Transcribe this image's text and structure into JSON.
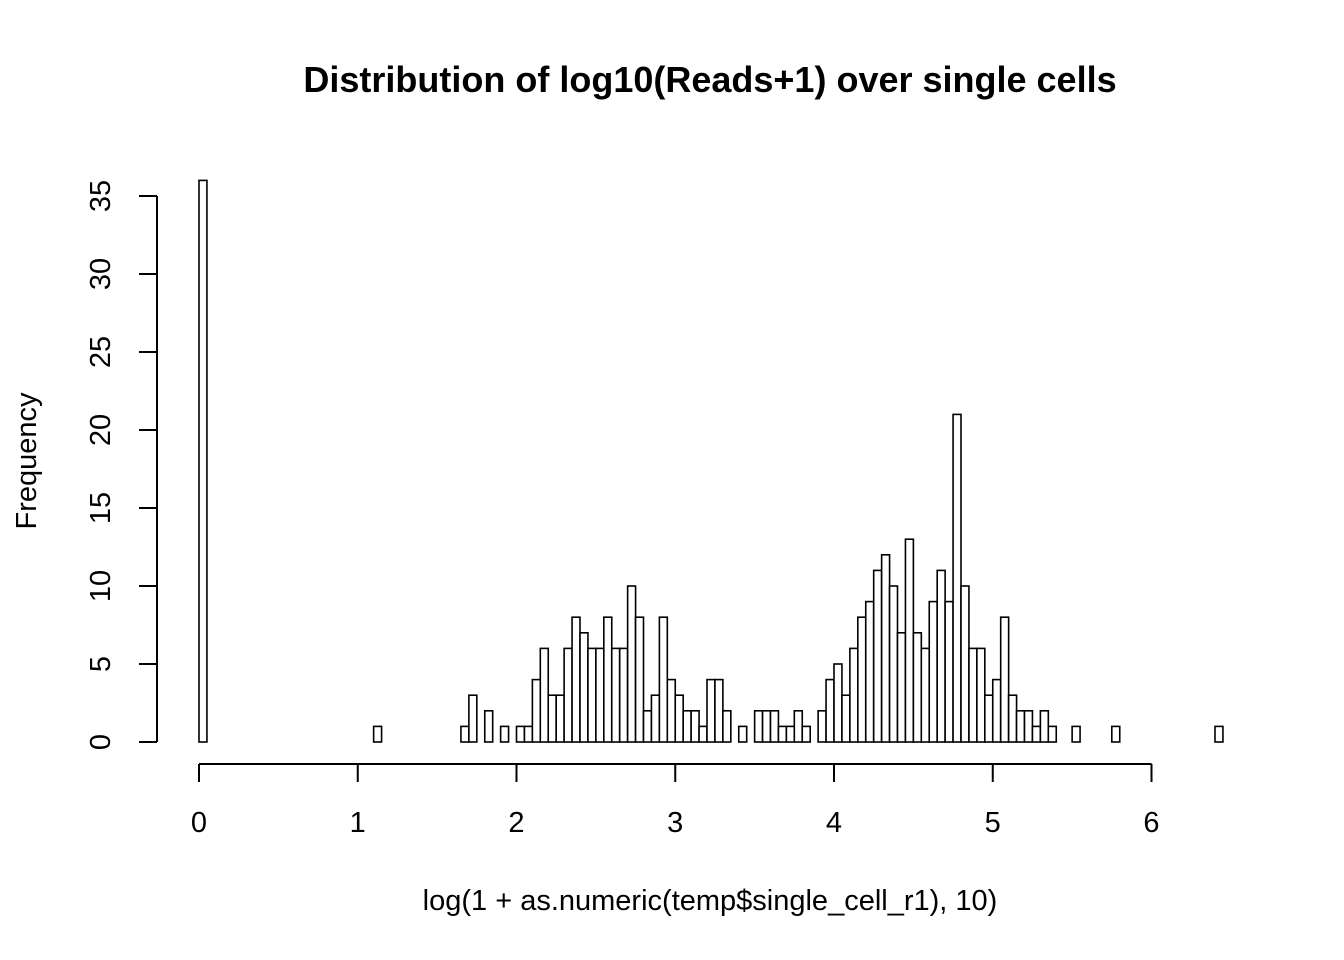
{
  "chart_data": {
    "type": "bar",
    "title": "Distribution of log10(Reads+1) over single cells",
    "xlabel": "log(1 + as.numeric(temp$single_cell_r1), 10)",
    "ylabel": "Frequency",
    "xlim": [
      0,
      6
    ],
    "ylim": [
      0,
      35
    ],
    "x_ticks": [
      {
        "value": 0,
        "label": "0"
      },
      {
        "value": 1,
        "label": "1"
      },
      {
        "value": 2,
        "label": "2"
      },
      {
        "value": 3,
        "label": "3"
      },
      {
        "value": 4,
        "label": "4"
      },
      {
        "value": 5,
        "label": "5"
      },
      {
        "value": 6,
        "label": "6"
      }
    ],
    "y_ticks": [
      {
        "value": 0,
        "label": "0"
      },
      {
        "value": 5,
        "label": "5"
      },
      {
        "value": 10,
        "label": "10"
      },
      {
        "value": 15,
        "label": "15"
      },
      {
        "value": 20,
        "label": "20"
      },
      {
        "value": 25,
        "label": "25"
      },
      {
        "value": 30,
        "label": "30"
      },
      {
        "value": 35,
        "label": "35"
      }
    ],
    "bin_start": 0,
    "bin_width": 0.05,
    "grid": false,
    "values": [
      36,
      0,
      0,
      0,
      0,
      0,
      0,
      0,
      0,
      0,
      0,
      0,
      0,
      0,
      0,
      0,
      0,
      0,
      0,
      0,
      0,
      0,
      1,
      0,
      0,
      0,
      0,
      0,
      0,
      0,
      0,
      0,
      0,
      1,
      3,
      0,
      2,
      0,
      1,
      0,
      1,
      1,
      4,
      6,
      3,
      3,
      6,
      8,
      7,
      6,
      6,
      8,
      6,
      6,
      10,
      8,
      2,
      3,
      8,
      4,
      3,
      2,
      2,
      1,
      4,
      4,
      2,
      0,
      1,
      0,
      2,
      2,
      2,
      1,
      1,
      2,
      1,
      0,
      2,
      4,
      5,
      3,
      6,
      8,
      9,
      11,
      12,
      10,
      7,
      13,
      7,
      6,
      9,
      11,
      9,
      21,
      10,
      6,
      6,
      3,
      4,
      8,
      3,
      2,
      2,
      1,
      2,
      1,
      0,
      0,
      1,
      0,
      0,
      0,
      0,
      1,
      0,
      0,
      0,
      0,
      0,
      0,
      0,
      0,
      0,
      0,
      0,
      0,
      1
    ]
  }
}
